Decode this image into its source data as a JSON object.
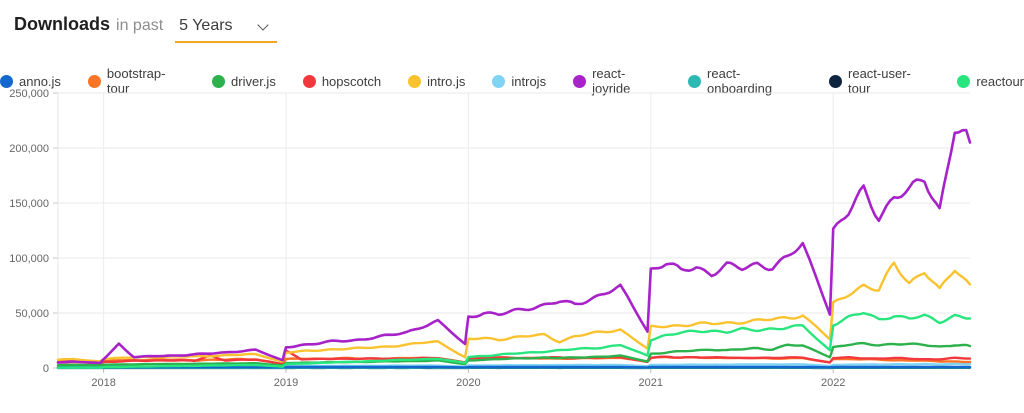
{
  "header": {
    "title": "Downloads",
    "connector": "in past",
    "range_value": "5 Years",
    "underline_color": "#f5a623"
  },
  "legend": {
    "items": [
      {
        "label": "anno.js",
        "color": "#1368ce"
      },
      {
        "label": "bootstrap-tour",
        "color": "#f97425"
      },
      {
        "label": "driver.js",
        "color": "#2cb14c"
      },
      {
        "label": "hopscotch",
        "color": "#f2383d"
      },
      {
        "label": "intro.js",
        "color": "#f9c22e"
      },
      {
        "label": "introjs",
        "color": "#7fd4f5"
      },
      {
        "label": "react-joyride",
        "color": "#a722c9"
      },
      {
        "label": "react-onboarding",
        "color": "#2cb9b2"
      },
      {
        "label": "react-user-tour",
        "color": "#0e2440"
      },
      {
        "label": "reactour",
        "color": "#29e57e"
      }
    ]
  },
  "chart_data": {
    "type": "line",
    "title": "Downloads in past 5 Years",
    "x_start": "2017-10",
    "x_end": "2022-10",
    "x_unit": "month",
    "x_tick_labels": [
      "2018",
      "2019",
      "2020",
      "2021",
      "2022"
    ],
    "y_tick_labels": [
      "0",
      "50,000",
      "100,000",
      "150,000",
      "200,000",
      "250,000"
    ],
    "ylim": [
      0,
      250000
    ],
    "grid": true,
    "legend_position": "top",
    "series": [
      {
        "name": "anno.js",
        "color": "#1368ce",
        "values": [
          900,
          950,
          700,
          900,
          950,
          900,
          950,
          900,
          950,
          900,
          950,
          900,
          950,
          900,
          600,
          950,
          900,
          950,
          900,
          950,
          900,
          950,
          900,
          950,
          900,
          950,
          600,
          900,
          950,
          900,
          950,
          900,
          950,
          900,
          950,
          900,
          950,
          900,
          600,
          950,
          900,
          950,
          900,
          950,
          900,
          950,
          900,
          950,
          900,
          950,
          600,
          900,
          950,
          900,
          950,
          900,
          950,
          900,
          950,
          900,
          900
        ]
      },
      {
        "name": "bootstrap-tour",
        "color": "#f97425",
        "values": [
          6000,
          6500,
          5000,
          6500,
          7000,
          7000,
          7500,
          7500,
          7500,
          7000,
          7500,
          7500,
          8000,
          8000,
          3500,
          8000,
          8500,
          8500,
          8500,
          9000,
          8500,
          8500,
          8500,
          9000,
          9000,
          9000,
          5000,
          8500,
          9000,
          9000,
          9000,
          8500,
          9000,
          8500,
          8500,
          9000,
          9000,
          9500,
          5500,
          9500,
          10000,
          9500,
          9500,
          9000,
          9500,
          9000,
          9000,
          8500,
          9000,
          9000,
          5000,
          8500,
          8000,
          8000,
          7500,
          7000,
          7000,
          6500,
          6000,
          6000,
          5500
        ]
      },
      {
        "name": "driver.js",
        "color": "#2cb14c",
        "values": [
          2500,
          3000,
          2500,
          3000,
          3200,
          3400,
          3500,
          3600,
          3700,
          3800,
          3900,
          4000,
          4200,
          4400,
          2200,
          4500,
          4800,
          5000,
          5200,
          5400,
          5600,
          5800,
          6000,
          6200,
          6500,
          6800,
          3500,
          7000,
          7500,
          8000,
          8500,
          9000,
          9500,
          9000,
          9500,
          10000,
          10500,
          11000,
          6000,
          13000,
          14000,
          15000,
          16000,
          17000,
          16000,
          17000,
          18000,
          17000,
          21000,
          20000,
          10000,
          19000,
          21000,
          22000,
          21000,
          22000,
          21500,
          21000,
          19500,
          21000,
          20000
        ]
      },
      {
        "name": "hopscotch",
        "color": "#f2383d",
        "values": [
          5000,
          5500,
          4000,
          5500,
          6000,
          6500,
          6500,
          7000,
          7000,
          6500,
          11000,
          7000,
          7500,
          7500,
          3500,
          16000,
          8000,
          8000,
          8500,
          8500,
          8500,
          8500,
          8500,
          8500,
          9000,
          9000,
          5000,
          9000,
          9000,
          9500,
          9500,
          9000,
          9500,
          9500,
          9000,
          9500,
          9500,
          10000,
          5500,
          9500,
          10000,
          9500,
          10000,
          9500,
          9500,
          9000,
          9500,
          9000,
          9500,
          9500,
          5000,
          9000,
          9500,
          9000,
          8500,
          9000,
          8500,
          8000,
          8000,
          9000,
          8500
        ]
      },
      {
        "name": "intro.js",
        "color": "#f9c22e",
        "values": [
          7500,
          8000,
          6000,
          8500,
          9000,
          9500,
          10000,
          10000,
          10500,
          10500,
          11000,
          11500,
          12000,
          12500,
          6000,
          14000,
          15000,
          16000,
          17000,
          17500,
          18000,
          19000,
          20000,
          21000,
          23000,
          24000,
          10000,
          26000,
          27000,
          26000,
          28000,
          29000,
          30000,
          24000,
          29000,
          31000,
          33000,
          35000,
          18000,
          37000,
          38000,
          39000,
          40000,
          40000,
          41000,
          42000,
          43000,
          44000,
          46000,
          48000,
          26000,
          58000,
          68000,
          75000,
          70000,
          95000,
          78000,
          88000,
          70000,
          90000,
          76000
        ]
      },
      {
        "name": "introjs",
        "color": "#7fd4f5",
        "values": [
          1000,
          1100,
          900,
          1100,
          1200,
          1200,
          1300,
          1300,
          1400,
          1400,
          1500,
          1500,
          1600,
          1600,
          900,
          1700,
          1800,
          1800,
          1900,
          1900,
          2000,
          2000,
          2100,
          2100,
          2200,
          2200,
          1200,
          2300,
          2400,
          2400,
          2500,
          2500,
          2600,
          2600,
          2700,
          2700,
          2800,
          2800,
          1500,
          2800,
          2900,
          2900,
          3000,
          3000,
          3100,
          3100,
          3200,
          3200,
          3300,
          3300,
          1800,
          2800,
          3000,
          3200,
          3000,
          3500,
          3300,
          3500,
          3200,
          3800,
          3500
        ]
      },
      {
        "name": "react-joyride",
        "color": "#a722c9",
        "values": [
          5000,
          6000,
          4500,
          8000,
          22000,
          10000,
          10500,
          11000,
          11500,
          12500,
          13000,
          14000,
          15500,
          16500,
          7000,
          19000,
          21000,
          22000,
          24000,
          25000,
          26000,
          28000,
          30000,
          33000,
          38000,
          42000,
          22000,
          47000,
          50000,
          48000,
          52000,
          55000,
          57000,
          60000,
          58000,
          63000,
          68000,
          73000,
          34000,
          90000,
          95000,
          88000,
          92000,
          86000,
          93000,
          90000,
          95000,
          92000,
          100000,
          112000,
          50000,
          125000,
          140000,
          162000,
          138000,
          155000,
          160000,
          172000,
          145000,
          218000,
          205000
        ]
      },
      {
        "name": "react-onboarding",
        "color": "#2cb9b2",
        "values": [
          200,
          220,
          180,
          230,
          240,
          250,
          240,
          250,
          260,
          250,
          260,
          270,
          260,
          270,
          180,
          280,
          290,
          280,
          290,
          300,
          290,
          300,
          310,
          300,
          310,
          320,
          200,
          320,
          330,
          320,
          330,
          340,
          330,
          340,
          350,
          340,
          350,
          360,
          220,
          360,
          370,
          360,
          370,
          380,
          370,
          380,
          390,
          380,
          390,
          400,
          240,
          400,
          410,
          400,
          410,
          420,
          410,
          420,
          430,
          420,
          430
        ]
      },
      {
        "name": "react-user-tour",
        "color": "#0e2440",
        "values": [
          100,
          110,
          90,
          110,
          120,
          110,
          120,
          130,
          120,
          130,
          120,
          130,
          120,
          130,
          80,
          130,
          140,
          130,
          140,
          130,
          140,
          130,
          140,
          130,
          140,
          130,
          90,
          140,
          150,
          140,
          150,
          140,
          150,
          140,
          150,
          140,
          150,
          140,
          90,
          150,
          160,
          150,
          160,
          150,
          160,
          150,
          160,
          150,
          160,
          150,
          100,
          150,
          160,
          150,
          160,
          150,
          160,
          150,
          160,
          150,
          160
        ]
      },
      {
        "name": "reactour",
        "color": "#29e57e",
        "values": [
          300,
          500,
          500,
          800,
          1000,
          1200,
          1400,
          1600,
          1800,
          2000,
          2200,
          2400,
          2600,
          2800,
          1200,
          3500,
          4000,
          4500,
          5000,
          5500,
          6000,
          6500,
          7000,
          7500,
          8000,
          8500,
          4500,
          10000,
          11000,
          12000,
          13000,
          14000,
          15000,
          16000,
          17000,
          18000,
          19000,
          21000,
          11000,
          26000,
          30000,
          32000,
          33000,
          34000,
          33000,
          35000,
          34000,
          36000,
          37000,
          38000,
          16000,
          40000,
          46000,
          50000,
          44000,
          48000,
          45000,
          47000,
          42000,
          48000,
          45000
        ]
      }
    ]
  }
}
